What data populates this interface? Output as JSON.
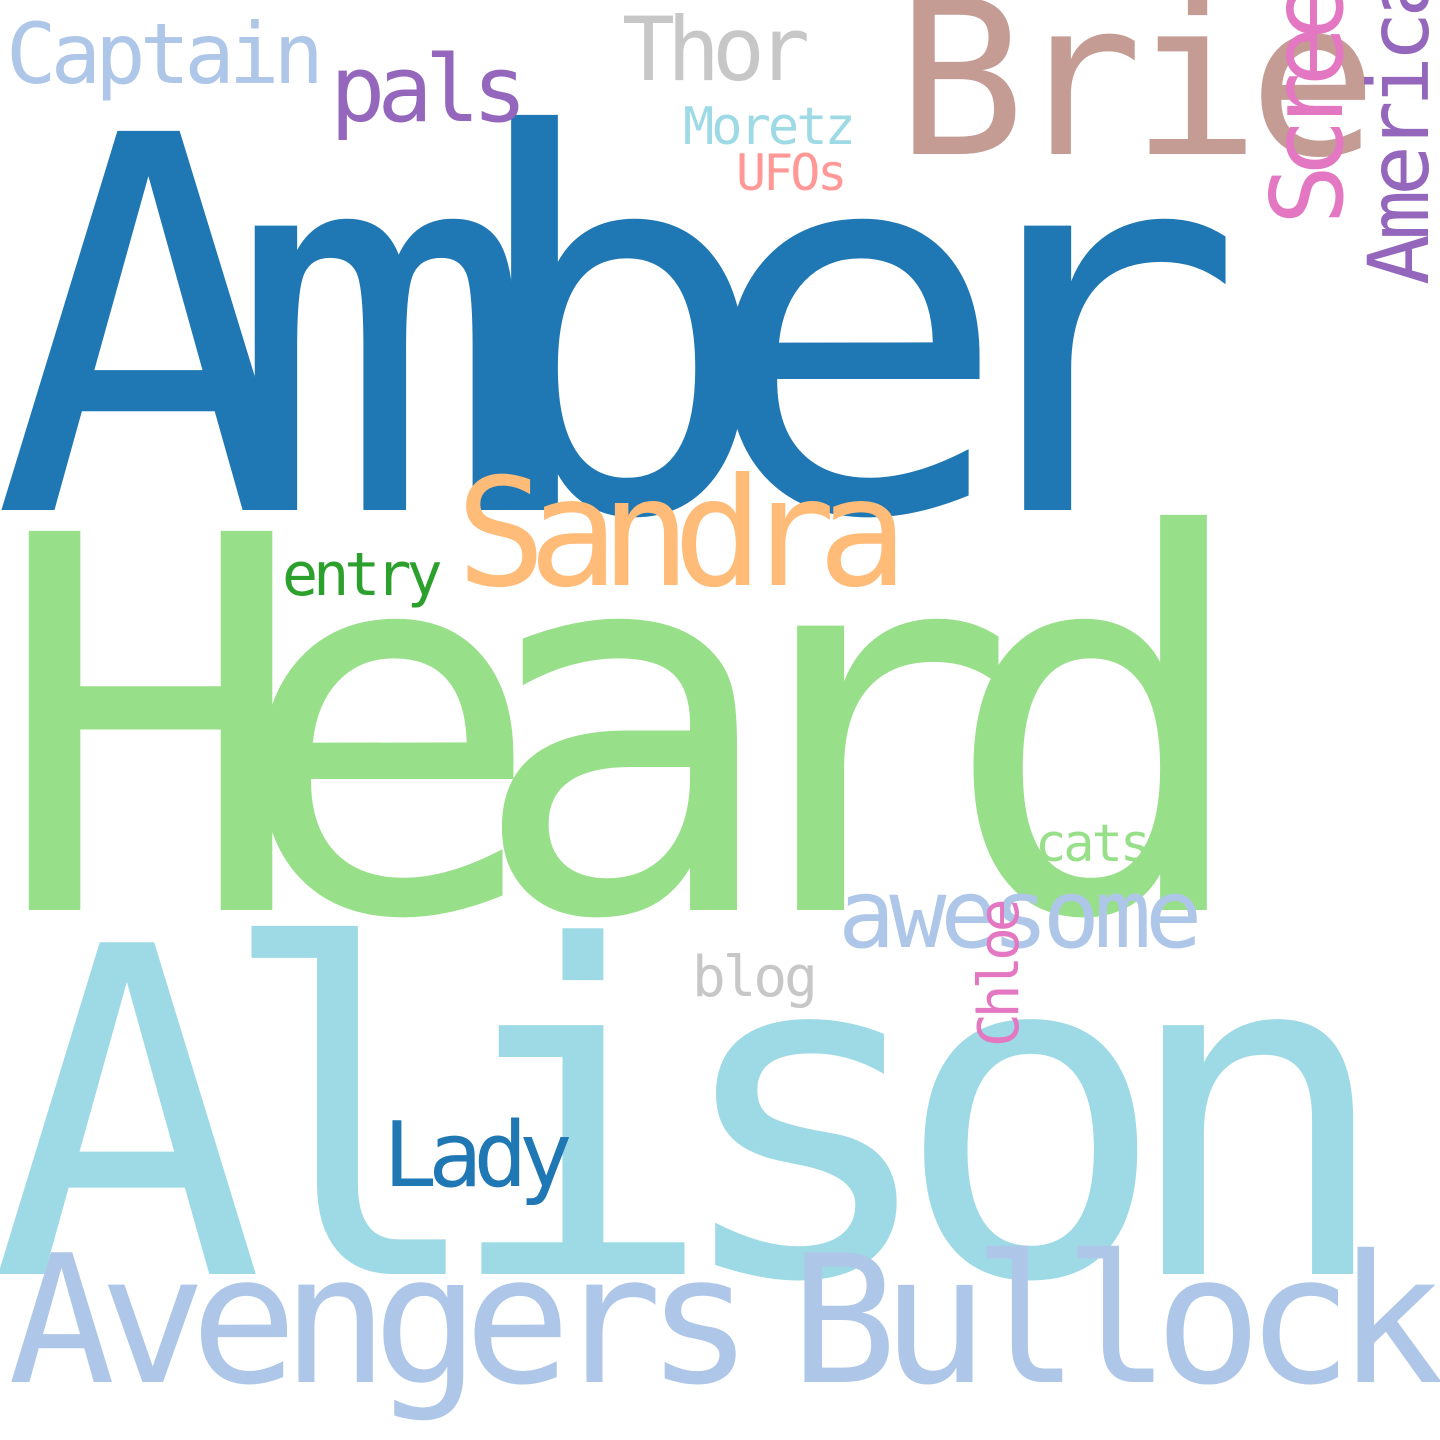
{
  "words": {
    "amber": {
      "text": "Amber",
      "color": "#1f77b4"
    },
    "heard": {
      "text": "Heard",
      "color": "#98df8a"
    },
    "alison": {
      "text": "Alison",
      "color": "#9edae5"
    },
    "brie": {
      "text": "Brie",
      "color": "#c49c94"
    },
    "avengers": {
      "text": "Avengers",
      "color": "#aec7e8"
    },
    "bullock": {
      "text": "Bullock",
      "color": "#aec7e8"
    },
    "sandra": {
      "text": "Sandra",
      "color": "#ffbb78"
    },
    "screencr": {
      "text": "ScreenCr",
      "color": "#e377c2"
    },
    "america": {
      "text": "America",
      "color": "#9467bd"
    },
    "awesome": {
      "text": "awesome",
      "color": "#aec7e8"
    },
    "pals": {
      "text": "pals",
      "color": "#9467bd"
    },
    "lady": {
      "text": "Lady",
      "color": "#1f77b4"
    },
    "thor": {
      "text": "Thor",
      "color": "#c7c7c7"
    },
    "captain": {
      "text": "Captain",
      "color": "#aec7e8"
    },
    "entry": {
      "text": "entry",
      "color": "#2ca02c"
    },
    "moretz": {
      "text": "Moretz",
      "color": "#9edae5"
    },
    "blog": {
      "text": "blog",
      "color": "#c7c7c7"
    },
    "cats": {
      "text": "cats",
      "color": "#98df8a"
    },
    "ufos": {
      "text": "UFOs",
      "color": "#ff9896"
    },
    "chloe": {
      "text": "Chloe",
      "color": "#e377c2"
    }
  }
}
